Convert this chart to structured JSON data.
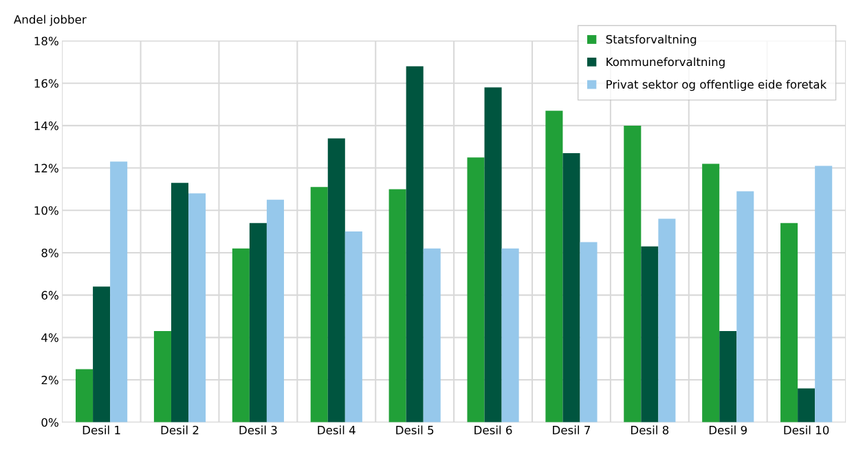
{
  "chart_data": {
    "type": "bar",
    "ylabel": "Andel jobber",
    "categories": [
      "Desil 1",
      "Desil 2",
      "Desil 3",
      "Desil 4",
      "Desil 5",
      "Desil 6",
      "Desil 7",
      "Desil 8",
      "Desil 9",
      "Desil 10"
    ],
    "series": [
      {
        "name": "Statsforvaltning",
        "color": "#21a038",
        "values": [
          2.5,
          4.3,
          8.2,
          11.1,
          11.0,
          12.5,
          14.7,
          14.0,
          12.2,
          9.4
        ]
      },
      {
        "name": "Kommuneforvaltning",
        "color": "#00553f",
        "values": [
          6.4,
          11.3,
          9.4,
          13.4,
          16.8,
          15.8,
          12.7,
          8.3,
          4.3,
          1.6
        ]
      },
      {
        "name": "Privat sektor og offentlige eide foretak",
        "color": "#96c8eb",
        "values": [
          12.3,
          10.8,
          10.5,
          9.0,
          8.2,
          8.2,
          8.5,
          9.6,
          10.9,
          12.1
        ]
      }
    ],
    "ylim": [
      0,
      18
    ],
    "yticks": [
      {
        "value": 0,
        "label": "0%"
      },
      {
        "value": 2,
        "label": "2%"
      },
      {
        "value": 4,
        "label": "4%"
      },
      {
        "value": 6,
        "label": "6%"
      },
      {
        "value": 8,
        "label": "8%"
      },
      {
        "value": 10,
        "label": "10%"
      },
      {
        "value": 12,
        "label": "12%"
      },
      {
        "value": 14,
        "label": "14%"
      },
      {
        "value": 16,
        "label": "16%"
      },
      {
        "value": 18,
        "label": "18%"
      }
    ],
    "grid": true,
    "legend": "top right"
  }
}
